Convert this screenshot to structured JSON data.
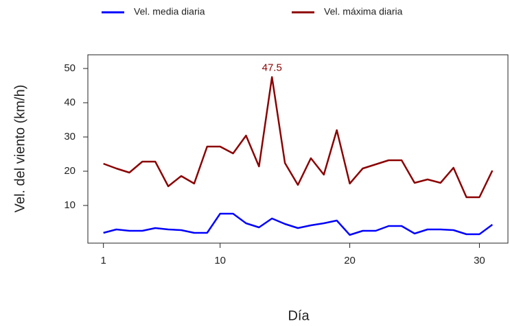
{
  "chart_data": {
    "type": "line",
    "xlabel": "Día",
    "ylabel": "Vel. del viento (km/h)",
    "x": [
      1,
      2,
      3,
      4,
      5,
      6,
      7,
      8,
      9,
      10,
      11,
      12,
      13,
      14,
      15,
      16,
      17,
      18,
      19,
      20,
      21,
      22,
      23,
      24,
      25,
      26,
      27,
      28,
      29,
      30,
      31
    ],
    "series": [
      {
        "name": "Vel. media diaria",
        "color": "#0000ff",
        "values": [
          2,
          3,
          2.6,
          2.6,
          3.4,
          3,
          2.8,
          2,
          2,
          7.6,
          7.6,
          4.8,
          3.6,
          6.2,
          4.6,
          3.4,
          4.2,
          4.8,
          5.6,
          1.4,
          2.6,
          2.6,
          4,
          4,
          1.8,
          3,
          3,
          2.8,
          1.6,
          1.6,
          4.4
        ]
      },
      {
        "name": "Vel. máxima diaria",
        "color": "#8b0000",
        "values": [
          22.2,
          20.8,
          19.6,
          22.8,
          22.8,
          15.6,
          18.6,
          16.4,
          27.2,
          27.2,
          25.2,
          30.4,
          21.4,
          47.5,
          22.4,
          16,
          23.8,
          19,
          32,
          16.4,
          20.8,
          22,
          23.2,
          23.2,
          16.6,
          17.6,
          16.6,
          21,
          12.4,
          12.4,
          20.2
        ]
      }
    ],
    "xlim": [
      -0.2,
      32.2
    ],
    "ylim": [
      -1,
      54
    ],
    "xticks": [
      1,
      10,
      20,
      30
    ],
    "yticks": [
      10,
      20,
      30,
      40,
      50
    ],
    "legend": "top",
    "grid": false
  }
}
